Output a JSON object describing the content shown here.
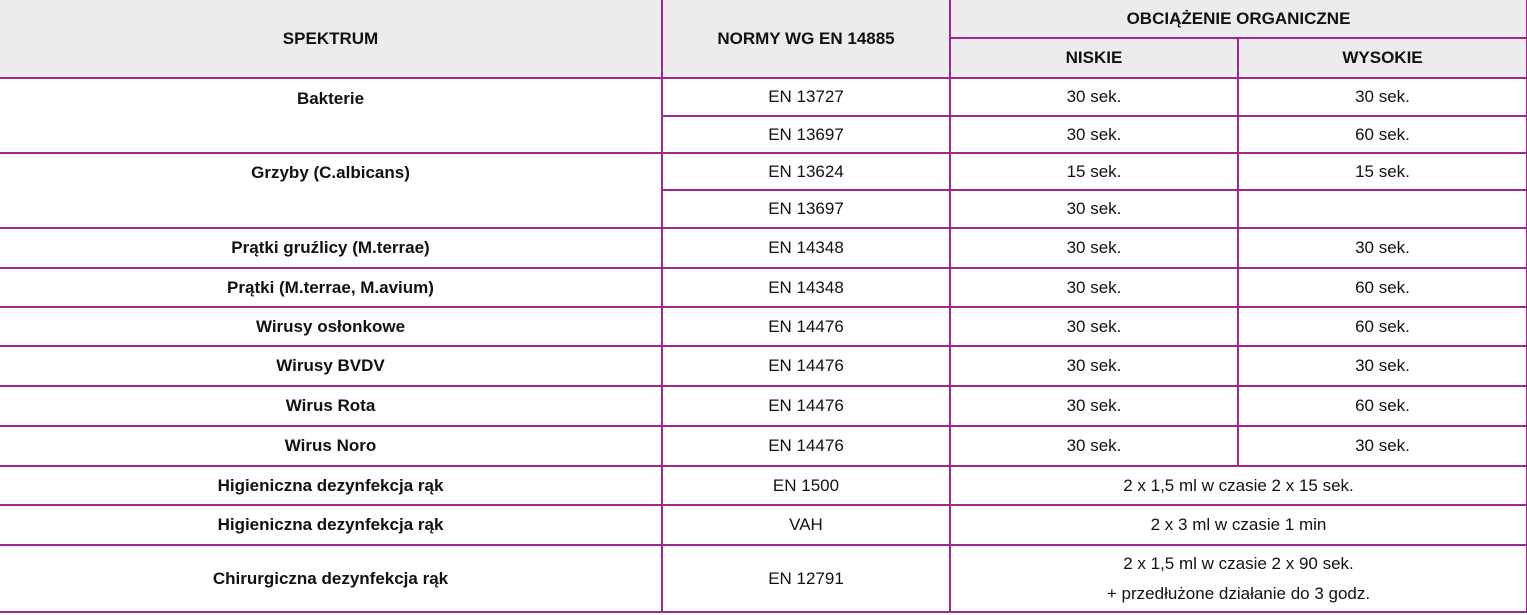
{
  "colors": {
    "border": "#a3268f",
    "header_bg": "#ececec"
  },
  "header": {
    "spectrum": "SPEKTRUM",
    "norms": "NORMY WG EN 14885",
    "load": "OBCIĄŻENIE ORGANICZNE",
    "low": "NISKIE",
    "high": "WYSOKIE"
  },
  "rows": [
    {
      "spectrum": "Bakterie",
      "norm": "EN 13727",
      "low": "30 sek.",
      "high": "30 sek."
    },
    {
      "norm": "EN 13697",
      "low": "30 sek.",
      "high": "60 sek."
    },
    {
      "spectrum": "Grzyby (C.albicans)",
      "norm": "EN 13624",
      "low": "15 sek.",
      "high": "15 sek."
    },
    {
      "norm": "EN 13697",
      "low": "30 sek.",
      "high": ""
    },
    {
      "spectrum": "Prątki gruźlicy (M.terrae)",
      "norm": "EN 14348",
      "low": "30 sek.",
      "high": "30 sek."
    },
    {
      "spectrum": "Prątki (M.terrae, M.avium)",
      "norm": "EN 14348",
      "low": "30 sek.",
      "high": "60 sek."
    },
    {
      "spectrum": "Wirusy osłonkowe",
      "norm": "EN 14476",
      "low": "30 sek.",
      "high": "60 sek."
    },
    {
      "spectrum": "Wirusy BVDV",
      "norm": "EN 14476",
      "low": "30 sek.",
      "high": "30 sek."
    },
    {
      "spectrum": "Wirus Rota",
      "norm": "EN 14476",
      "low": "30 sek.",
      "high": "60 sek."
    },
    {
      "spectrum": "Wirus Noro",
      "norm": "EN 14476",
      "low": "30 sek.",
      "high": "30 sek."
    },
    {
      "spectrum": "Higieniczna dezynfekcja rąk",
      "norm": "EN 1500",
      "combined": "2 x 1,5 ml w czasie 2 x 15 sek."
    },
    {
      "spectrum": "Higieniczna dezynfekcja rąk",
      "norm": "VAH",
      "combined": "2 x 3 ml w czasie 1 min"
    },
    {
      "spectrum": "Chirurgiczna dezynfekcja rąk",
      "norm": "EN 12791",
      "combined": "2 x 1,5 ml w czasie 2 x 90 sek.",
      "combined2": "+ przedłużone działanie do 3 godz."
    }
  ]
}
